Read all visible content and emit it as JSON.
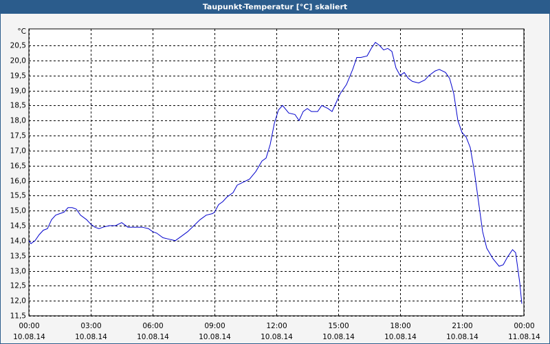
{
  "chart_data": {
    "type": "line",
    "title": "Taupunkt-Temperatur [°C] skaliert",
    "y_unit": "°C",
    "x": [
      0,
      0.1,
      0.3,
      0.5,
      0.7,
      0.9,
      1.1,
      1.3,
      1.5,
      1.7,
      1.9,
      2.1,
      2.3,
      2.5,
      2.8,
      3.0,
      3.2,
      3.4,
      3.6,
      3.9,
      4.2,
      4.5,
      4.8,
      5.1,
      5.5,
      5.8,
      6.0,
      6.2,
      6.5,
      6.8,
      7.1,
      7.4,
      7.7,
      8.0,
      8.3,
      8.6,
      8.9,
      9.0,
      9.2,
      9.4,
      9.6,
      9.9,
      10.1,
      10.4,
      10.7,
      11.0,
      11.3,
      11.5,
      11.7,
      11.9,
      12.1,
      12.3,
      12.6,
      12.9,
      13.1,
      13.3,
      13.5,
      13.7,
      14.0,
      14.2,
      14.5,
      14.7,
      14.9,
      15.1,
      15.4,
      15.7,
      15.9,
      16.1,
      16.4,
      16.6,
      16.8,
      17.0,
      17.2,
      17.4,
      17.6,
      17.8,
      18.0,
      18.2,
      18.4,
      18.6,
      18.9,
      19.2,
      19.4,
      19.7,
      19.9,
      20.2,
      20.4,
      20.6,
      20.8,
      21.0,
      21.2,
      21.4,
      21.6,
      21.8,
      22.0,
      22.2,
      22.5,
      22.8,
      23.0,
      23.2,
      23.45,
      23.6,
      23.8,
      23.9
    ],
    "series": [
      {
        "name": "Taupunkt-Temperatur",
        "color": "#0000cc",
        "values": [
          14.0,
          13.9,
          14.0,
          14.2,
          14.35,
          14.4,
          14.7,
          14.85,
          14.9,
          14.95,
          15.1,
          15.1,
          15.05,
          14.85,
          14.7,
          14.55,
          14.45,
          14.4,
          14.45,
          14.5,
          14.5,
          14.6,
          14.45,
          14.45,
          14.45,
          14.4,
          14.3,
          14.25,
          14.1,
          14.05,
          14.0,
          14.15,
          14.3,
          14.5,
          14.7,
          14.85,
          14.9,
          14.95,
          15.2,
          15.3,
          15.45,
          15.6,
          15.85,
          15.95,
          16.05,
          16.3,
          16.65,
          16.75,
          17.2,
          17.9,
          18.35,
          18.5,
          18.25,
          18.2,
          18.0,
          18.3,
          18.4,
          18.3,
          18.3,
          18.5,
          18.4,
          18.3,
          18.6,
          18.9,
          19.2,
          19.7,
          20.1,
          20.1,
          20.15,
          20.4,
          20.6,
          20.5,
          20.35,
          20.4,
          20.3,
          19.75,
          19.5,
          19.6,
          19.4,
          19.3,
          19.25,
          19.35,
          19.5,
          19.65,
          19.7,
          19.6,
          19.4,
          18.9,
          18.0,
          17.6,
          17.45,
          17.1,
          16.3,
          15.3,
          14.3,
          13.75,
          13.4,
          13.15,
          13.2,
          13.45,
          13.7,
          13.6,
          12.6,
          11.9
        ]
      }
    ],
    "xlim": [
      0,
      24
    ],
    "xticks": [
      {
        "value": 0,
        "label": "00:00",
        "date": "10.08.14"
      },
      {
        "value": 3,
        "label": "03:00",
        "date": "10.08.14"
      },
      {
        "value": 6,
        "label": "06:00",
        "date": "10.08.14"
      },
      {
        "value": 9,
        "label": "09:00",
        "date": "10.08.14"
      },
      {
        "value": 12,
        "label": "12:00",
        "date": "10.08.14"
      },
      {
        "value": 15,
        "label": "15:00",
        "date": "10.08.14"
      },
      {
        "value": 18,
        "label": "18:00",
        "date": "10.08.14"
      },
      {
        "value": 21,
        "label": "21:00",
        "date": "10.08.14"
      },
      {
        "value": 24,
        "label": "00:00",
        "date": "11.08.14"
      }
    ],
    "ylim": [
      11.5,
      21.05
    ],
    "yticks": [
      {
        "value": 11.5,
        "label": "11,5"
      },
      {
        "value": 12,
        "label": "12,0"
      },
      {
        "value": 12.5,
        "label": "12,5"
      },
      {
        "value": 13,
        "label": "13,0"
      },
      {
        "value": 13.5,
        "label": "13,5"
      },
      {
        "value": 14,
        "label": "14,0"
      },
      {
        "value": 14.5,
        "label": "14,5"
      },
      {
        "value": 15,
        "label": "15,0"
      },
      {
        "value": 15.5,
        "label": "15,5"
      },
      {
        "value": 16,
        "label": "16,0"
      },
      {
        "value": 16.5,
        "label": "16,5"
      },
      {
        "value": 17,
        "label": "17,0"
      },
      {
        "value": 17.5,
        "label": "17,5"
      },
      {
        "value": 18,
        "label": "18,0"
      },
      {
        "value": 18.5,
        "label": "18,5"
      },
      {
        "value": 19,
        "label": "19,0"
      },
      {
        "value": 19.5,
        "label": "19,5"
      },
      {
        "value": 20,
        "label": "20,0"
      },
      {
        "value": 20.5,
        "label": "20,5"
      }
    ],
    "grid": true
  }
}
